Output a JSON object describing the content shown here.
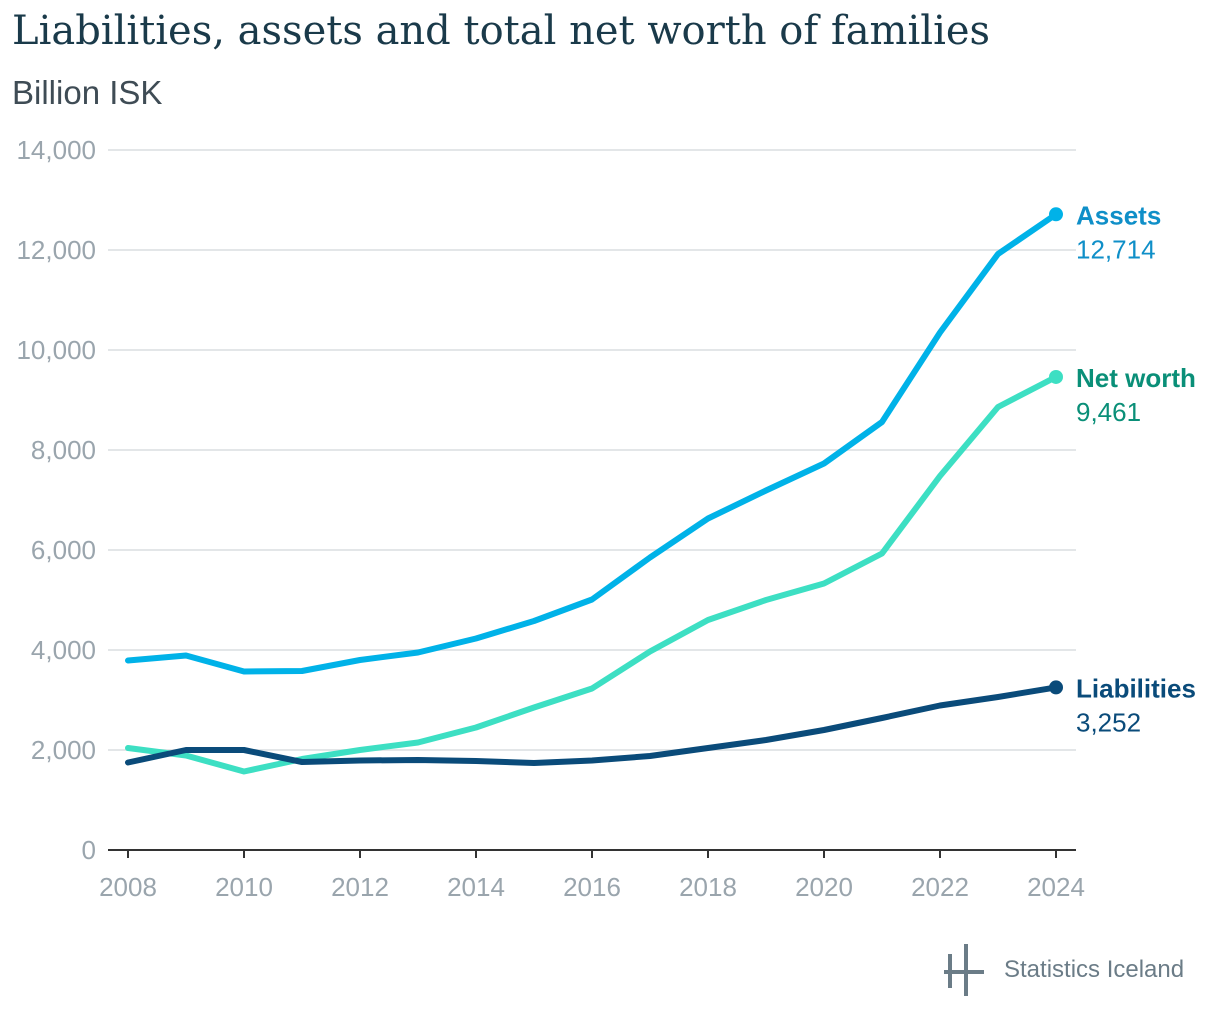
{
  "chart_data": {
    "type": "line",
    "title": "Liabilities, assets and total net worth of families",
    "subtitle": "Billion ISK",
    "xlabel": "",
    "ylabel": "",
    "x": [
      2008,
      2009,
      2010,
      2011,
      2012,
      2013,
      2014,
      2015,
      2016,
      2017,
      2018,
      2019,
      2020,
      2021,
      2022,
      2023,
      2024
    ],
    "x_ticks": [
      "2008",
      "2010",
      "2012",
      "2014",
      "2016",
      "2018",
      "2020",
      "2022",
      "2024"
    ],
    "y_ticks": [
      "0",
      "2,000",
      "4,000",
      "6,000",
      "8,000",
      "10,000",
      "12,000",
      "14,000"
    ],
    "ylim": [
      0,
      14000
    ],
    "xlim": [
      2008,
      2024
    ],
    "grid": true,
    "series": [
      {
        "name": "Assets",
        "color": "#00b2e8",
        "label_color": "#0f8fc8",
        "end_value_label": "12,714",
        "values": [
          3790,
          3890,
          3570,
          3580,
          3800,
          3950,
          4230,
          4580,
          5010,
          5850,
          6630,
          7190,
          7730,
          8560,
          10350,
          11920,
          12714
        ]
      },
      {
        "name": "Net worth",
        "color": "#3ddfc3",
        "label_color": "#0a8f78",
        "end_value_label": "9,461",
        "values": [
          2040,
          1890,
          1570,
          1820,
          2000,
          2150,
          2450,
          2850,
          3230,
          3970,
          4600,
          5000,
          5330,
          5930,
          7480,
          8860,
          9461
        ]
      },
      {
        "name": "Liabilities",
        "color": "#0a4b7a",
        "label_color": "#0a4b7a",
        "end_value_label": "3,252",
        "values": [
          1750,
          2000,
          2000,
          1760,
          1790,
          1800,
          1780,
          1740,
          1790,
          1880,
          2040,
          2200,
          2400,
          2640,
          2890,
          3060,
          3252
        ]
      }
    ]
  },
  "branding": {
    "logo_text": "Statistics Iceland",
    "logo_color": "#6b7c87"
  },
  "colors": {
    "title": "#1a3a4a",
    "subtitle": "#3f4c55",
    "gridline": "#e3e6e8",
    "axis": "#333333",
    "tick_label": "#9aa5ad"
  }
}
